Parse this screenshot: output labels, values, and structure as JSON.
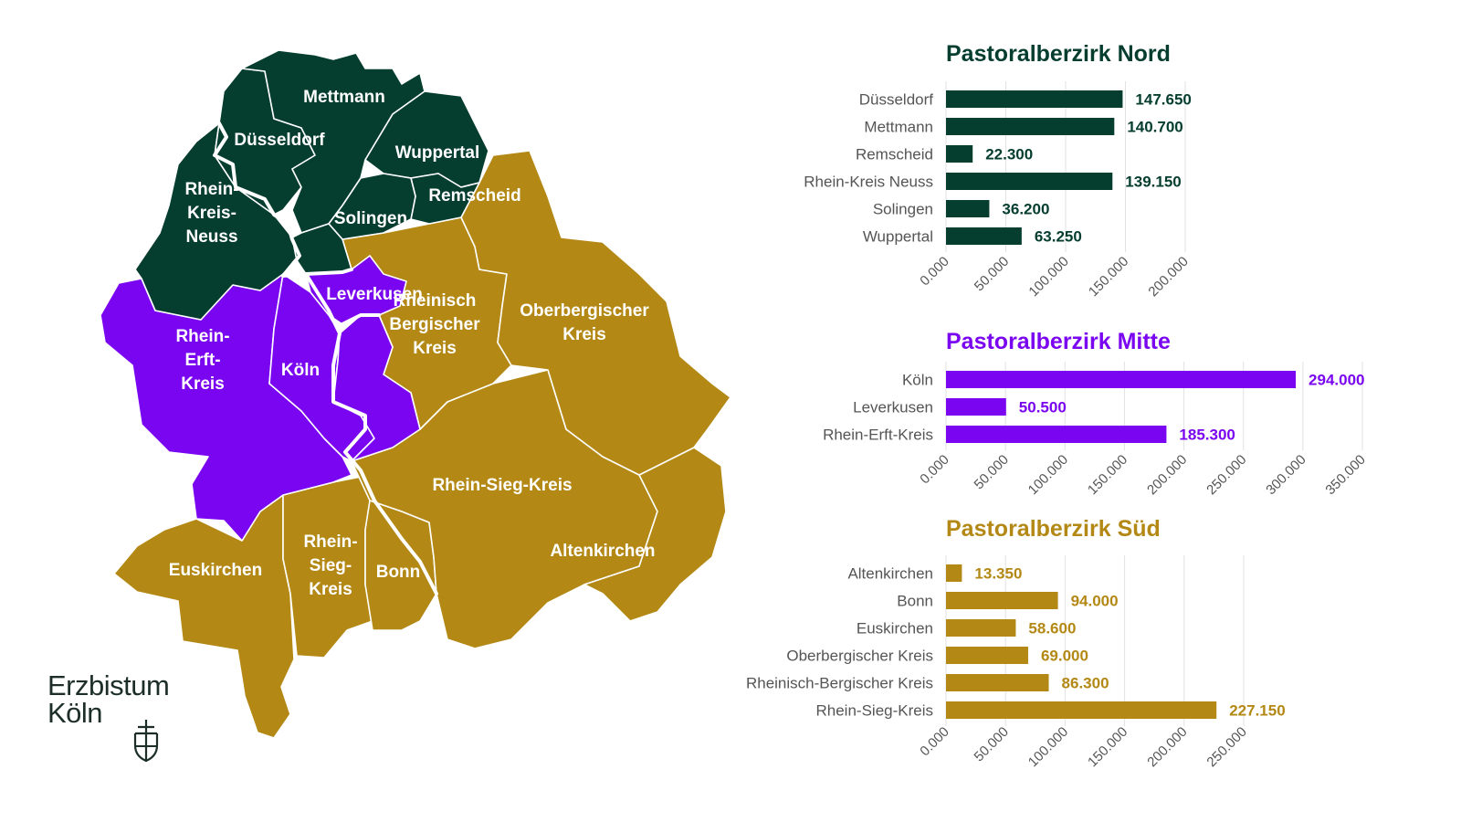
{
  "colors": {
    "nord": "#053d2f",
    "mitte": "#7a05f0",
    "sued": "#b38814"
  },
  "logo": {
    "line1": "Erzbistum",
    "line2": "Köln",
    "mark": "cross-shield-icon"
  },
  "map": {
    "labels": {
      "mettmann": [
        "Mettmann"
      ],
      "duesseldorf": [
        "Düsseldorf"
      ],
      "wuppertal": [
        "Wuppertal"
      ],
      "remscheid": [
        "Remscheid"
      ],
      "solingen": [
        "Solingen"
      ],
      "neuss": [
        "Rhein-",
        "Kreis-",
        "Neuss"
      ],
      "leverkusen": [
        "Leverkusen"
      ],
      "rheinisch": [
        "Rheinisch",
        "Bergischer",
        "Kreis"
      ],
      "oberbergisch": [
        "Oberbergischer",
        "Kreis"
      ],
      "koeln": [
        "Köln"
      ],
      "erft": [
        "Rhein-",
        "Erft-",
        "Kreis"
      ],
      "siegkreis": [
        "Rhein-Sieg-Kreis"
      ],
      "altenkirchen": [
        "Altenkirchen"
      ],
      "euskirchen": [
        "Euskirchen"
      ],
      "siegsmall": [
        "Rhein-",
        "Sieg-",
        "Kreis"
      ],
      "bonn": [
        "Bonn"
      ]
    }
  },
  "chart_data": [
    {
      "type": "bar",
      "orientation": "horizontal",
      "title": "Pastoralberzirk Nord",
      "categories": [
        "Düsseldorf",
        "Mettmann",
        "Remscheid",
        "Rhein-Kreis Neuss",
        "Solingen",
        "Wuppertal"
      ],
      "values": [
        147650,
        140700,
        22300,
        139150,
        36200,
        63250
      ],
      "value_labels": [
        "147.650",
        "140.700",
        "22.300",
        "139.150",
        "36.200",
        "63.250"
      ],
      "xlim": [
        0,
        200000
      ],
      "ticks": [
        0,
        50000,
        100000,
        150000,
        200000
      ],
      "tick_labels": [
        "0.000",
        "50.000",
        "100.000",
        "150.000",
        "200.000"
      ],
      "color": "#053d2f",
      "grid": true
    },
    {
      "type": "bar",
      "orientation": "horizontal",
      "title": "Pastoralberzirk Mitte",
      "categories": [
        "Köln",
        "Leverkusen",
        "Rhein-Erft-Kreis"
      ],
      "values": [
        294000,
        50500,
        185300
      ],
      "value_labels": [
        "294.000",
        "50.500",
        "185.300"
      ],
      "xlim": [
        0,
        350000
      ],
      "ticks": [
        0,
        50000,
        100000,
        150000,
        200000,
        250000,
        300000,
        350000
      ],
      "tick_labels": [
        "0.000",
        "50.000",
        "100.000",
        "150.000",
        "200.000",
        "250.000",
        "300.000",
        "350.000"
      ],
      "color": "#7a05f0",
      "grid": true
    },
    {
      "type": "bar",
      "orientation": "horizontal",
      "title": "Pastoralberzirk Süd",
      "categories": [
        "Altenkirchen",
        "Bonn",
        "Euskirchen",
        "Oberbergischer Kreis",
        "Rheinisch-Bergischer Kreis",
        "Rhein-Sieg-Kreis"
      ],
      "values": [
        13350,
        94000,
        58600,
        69000,
        86300,
        227150
      ],
      "value_labels": [
        "13.350",
        "94.000",
        "58.600",
        "69.000",
        "86.300",
        "227.150"
      ],
      "xlim": [
        0,
        250000
      ],
      "ticks": [
        0,
        50000,
        100000,
        150000,
        200000,
        250000
      ],
      "tick_labels": [
        "0.000",
        "50.000",
        "100.000",
        "150.000",
        "200.000",
        "250.000"
      ],
      "color": "#b38814",
      "grid": true
    }
  ]
}
